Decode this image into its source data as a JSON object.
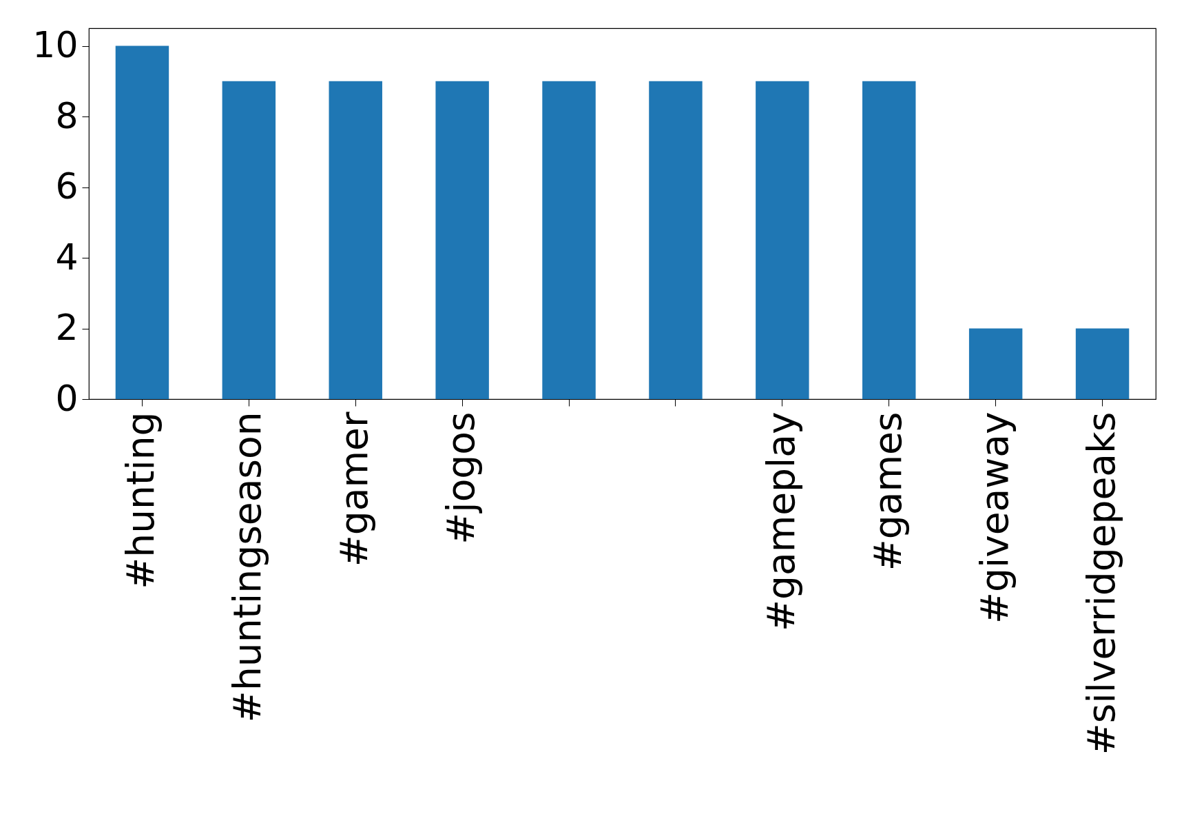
{
  "chart_data": {
    "type": "bar",
    "categories": [
      "#hunting",
      "#huntingseason",
      "#gamer",
      "#jogos",
      null,
      null,
      "#gameplay",
      "#games",
      "#giveaway",
      "#silverridgepeaks"
    ],
    "values": [
      10,
      9,
      9,
      9,
      9,
      9,
      9,
      9,
      2,
      2
    ],
    "color": "#1f77b4",
    "ylim": [
      0,
      10.5
    ],
    "yticks": [
      0,
      2,
      4,
      6,
      8,
      10
    ],
    "grid": false
  }
}
